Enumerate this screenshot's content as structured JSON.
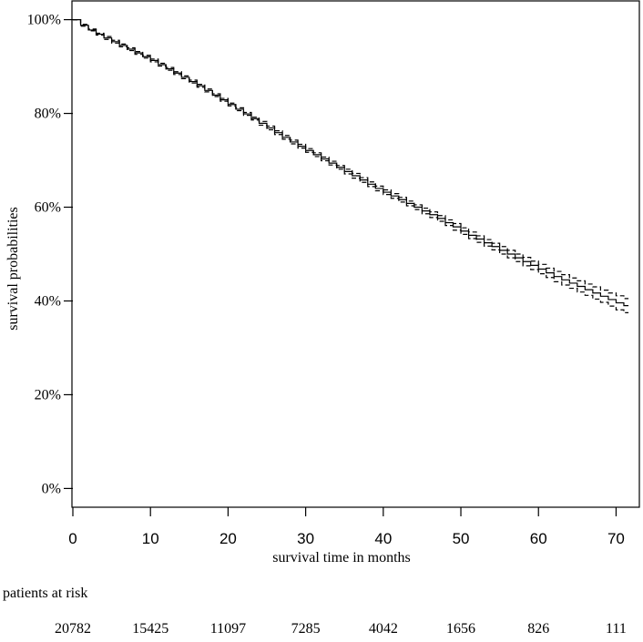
{
  "chart_data": {
    "type": "line",
    "title": "",
    "xlabel": "survival time in months",
    "ylabel": "survival probabilities",
    "xlim": [
      0,
      73
    ],
    "ylim": [
      -0.04,
      1.04
    ],
    "x_ticks": [
      0,
      10,
      20,
      30,
      40,
      50,
      60,
      70
    ],
    "x_tick_labels": [
      "0",
      "10",
      "20",
      "30",
      "40",
      "50",
      "60",
      "70"
    ],
    "y_ticks": [
      0,
      0.2,
      0.4,
      0.6,
      0.8,
      1.0
    ],
    "y_tick_labels": [
      "0%",
      "20%",
      "40%",
      "60%",
      "80%",
      "100%"
    ],
    "grid": false,
    "legend": "none",
    "line_color": "#000000",
    "series": [
      {
        "style": "solid",
        "step": true,
        "x": [
          0,
          1,
          2,
          3,
          4,
          5,
          6,
          7,
          8,
          9,
          10,
          11,
          12,
          13,
          14,
          15,
          16,
          17,
          18,
          19,
          20,
          21,
          22,
          23,
          24,
          25,
          26,
          27,
          28,
          29,
          30,
          31,
          32,
          33,
          34,
          35,
          36,
          37,
          38,
          39,
          40,
          41,
          42,
          43,
          44,
          45,
          46,
          47,
          48,
          49,
          50,
          51,
          52,
          53,
          54,
          55,
          56,
          57,
          58,
          59,
          60,
          61,
          62,
          63,
          64,
          65,
          66,
          67,
          68,
          69,
          70,
          71
        ],
        "y": [
          1.0,
          0.988,
          0.978,
          0.969,
          0.961,
          0.953,
          0.945,
          0.937,
          0.929,
          0.921,
          0.913,
          0.904,
          0.895,
          0.886,
          0.877,
          0.868,
          0.859,
          0.849,
          0.839,
          0.829,
          0.819,
          0.809,
          0.799,
          0.789,
          0.779,
          0.769,
          0.759,
          0.749,
          0.739,
          0.73,
          0.721,
          0.712,
          0.703,
          0.694,
          0.685,
          0.676,
          0.667,
          0.658,
          0.649,
          0.64,
          0.632,
          0.624,
          0.616,
          0.608,
          0.6,
          0.592,
          0.584,
          0.576,
          0.567,
          0.558,
          0.549,
          0.54,
          0.532,
          0.524,
          0.516,
          0.508,
          0.5,
          0.492,
          0.484,
          0.476,
          0.468,
          0.46,
          0.452,
          0.445,
          0.438,
          0.431,
          0.424,
          0.417,
          0.41,
          0.403,
          0.396,
          0.39
        ]
      },
      {
        "style": "dashed",
        "step": true,
        "x": [
          0,
          1,
          2,
          3,
          4,
          5,
          6,
          7,
          8,
          9,
          10,
          11,
          12,
          13,
          14,
          15,
          16,
          17,
          18,
          19,
          20,
          21,
          22,
          23,
          24,
          25,
          26,
          27,
          28,
          29,
          30,
          31,
          32,
          33,
          34,
          35,
          36,
          37,
          38,
          39,
          40,
          41,
          42,
          43,
          44,
          45,
          46,
          47,
          48,
          49,
          50,
          51,
          52,
          53,
          54,
          55,
          56,
          57,
          58,
          59,
          60,
          61,
          62,
          63,
          64,
          65,
          66,
          67,
          68,
          69,
          70,
          71
        ],
        "y": [
          1.0,
          0.99,
          0.98,
          0.971,
          0.964,
          0.956,
          0.948,
          0.94,
          0.932,
          0.924,
          0.916,
          0.907,
          0.898,
          0.889,
          0.88,
          0.871,
          0.862,
          0.852,
          0.842,
          0.832,
          0.822,
          0.812,
          0.802,
          0.792,
          0.783,
          0.773,
          0.763,
          0.753,
          0.743,
          0.734,
          0.725,
          0.716,
          0.707,
          0.698,
          0.689,
          0.681,
          0.672,
          0.663,
          0.654,
          0.645,
          0.637,
          0.629,
          0.621,
          0.613,
          0.605,
          0.598,
          0.59,
          0.582,
          0.573,
          0.565,
          0.556,
          0.547,
          0.539,
          0.531,
          0.523,
          0.516,
          0.508,
          0.5,
          0.493,
          0.485,
          0.478,
          0.47,
          0.463,
          0.456,
          0.449,
          0.443,
          0.436,
          0.43,
          0.423,
          0.417,
          0.411,
          0.405
        ]
      },
      {
        "style": "dashed",
        "step": true,
        "x": [
          0,
          1,
          2,
          3,
          4,
          5,
          6,
          7,
          8,
          9,
          10,
          11,
          12,
          13,
          14,
          15,
          16,
          17,
          18,
          19,
          20,
          21,
          22,
          23,
          24,
          25,
          26,
          27,
          28,
          29,
          30,
          31,
          32,
          33,
          34,
          35,
          36,
          37,
          38,
          39,
          40,
          41,
          42,
          43,
          44,
          45,
          46,
          47,
          48,
          49,
          50,
          51,
          52,
          53,
          54,
          55,
          56,
          57,
          58,
          59,
          60,
          61,
          62,
          63,
          64,
          65,
          66,
          67,
          68,
          69,
          70,
          71
        ],
        "y": [
          1.0,
          0.986,
          0.976,
          0.967,
          0.958,
          0.95,
          0.942,
          0.934,
          0.926,
          0.918,
          0.91,
          0.901,
          0.892,
          0.883,
          0.874,
          0.865,
          0.856,
          0.846,
          0.836,
          0.826,
          0.816,
          0.806,
          0.796,
          0.786,
          0.775,
          0.765,
          0.755,
          0.745,
          0.735,
          0.726,
          0.717,
          0.708,
          0.699,
          0.69,
          0.681,
          0.671,
          0.662,
          0.653,
          0.644,
          0.635,
          0.627,
          0.619,
          0.611,
          0.603,
          0.595,
          0.586,
          0.578,
          0.57,
          0.561,
          0.551,
          0.542,
          0.533,
          0.525,
          0.517,
          0.509,
          0.5,
          0.492,
          0.484,
          0.475,
          0.467,
          0.458,
          0.45,
          0.441,
          0.434,
          0.427,
          0.419,
          0.412,
          0.404,
          0.397,
          0.389,
          0.381,
          0.375
        ]
      }
    ],
    "risk_table": {
      "label": "patients at risk",
      "times": [
        0,
        10,
        20,
        30,
        40,
        50,
        60,
        70
      ],
      "values": [
        "20782",
        "15425",
        "11097",
        "7285",
        "4042",
        "1656",
        "826",
        "111"
      ]
    }
  }
}
